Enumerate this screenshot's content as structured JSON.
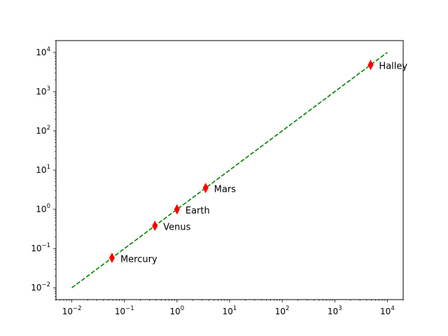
{
  "chart_data": {
    "type": "scatter",
    "title": "",
    "xlabel": "",
    "ylabel": "",
    "x_scale": "log",
    "y_scale": "log",
    "xlim": [
      0.005,
      20000
    ],
    "ylim": [
      0.005,
      20000
    ],
    "grid": false,
    "x_ticks": [
      {
        "base": "10",
        "exp": "−2",
        "value": 0.01
      },
      {
        "base": "10",
        "exp": "−1",
        "value": 0.1
      },
      {
        "base": "10",
        "exp": "0",
        "value": 1
      },
      {
        "base": "10",
        "exp": "1",
        "value": 10
      },
      {
        "base": "10",
        "exp": "2",
        "value": 100
      },
      {
        "base": "10",
        "exp": "3",
        "value": 1000
      },
      {
        "base": "10",
        "exp": "4",
        "value": 10000
      }
    ],
    "y_ticks": [
      {
        "base": "10",
        "exp": "−2",
        "value": 0.01
      },
      {
        "base": "10",
        "exp": "−1",
        "value": 0.1
      },
      {
        "base": "10",
        "exp": "0",
        "value": 1
      },
      {
        "base": "10",
        "exp": "1",
        "value": 10
      },
      {
        "base": "10",
        "exp": "2",
        "value": 100
      },
      {
        "base": "10",
        "exp": "3",
        "value": 1000
      },
      {
        "base": "10",
        "exp": "4",
        "value": 10000
      }
    ],
    "points": [
      {
        "label": "Mercury",
        "x": 0.058,
        "y": 0.058
      },
      {
        "label": "Venus",
        "x": 0.38,
        "y": 0.38
      },
      {
        "label": "Earth",
        "x": 1.0,
        "y": 1.0
      },
      {
        "label": "Mars",
        "x": 3.5,
        "y": 3.5
      },
      {
        "label": "Halley",
        "x": 4800,
        "y": 4800
      }
    ],
    "line": {
      "x": [
        0.01,
        10000
      ],
      "y": [
        0.01,
        10000
      ],
      "style": "dashed"
    },
    "marker": "thin-diamond",
    "colors": {
      "points": "#ff0000",
      "line": "#008000",
      "axes": "#000000"
    }
  }
}
